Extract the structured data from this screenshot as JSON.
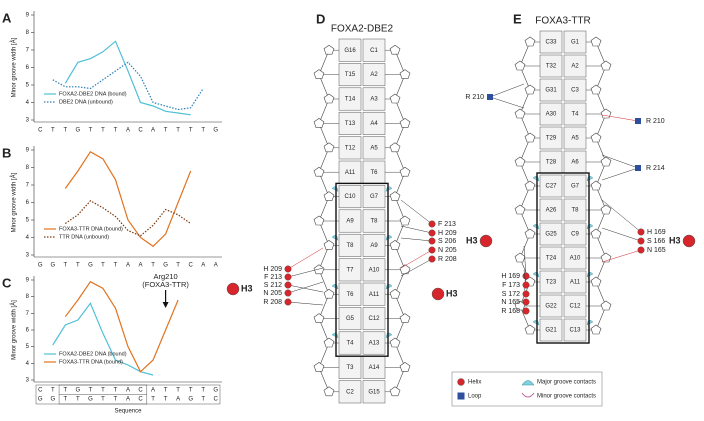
{
  "chart_data": [
    {
      "type": "line",
      "label": "A",
      "ylabel": "Minor groove width [Å]",
      "categories": [
        "C",
        "T",
        "T",
        "G",
        "T",
        "T",
        "T",
        "A",
        "C",
        "A",
        "T",
        "T",
        "T",
        "T",
        "G"
      ],
      "ylim": [
        3,
        9
      ],
      "yticks": [
        3,
        4,
        5,
        6,
        7,
        8,
        9
      ],
      "series": [
        {
          "name": "FOXA2-DBE2 DNA (bound)",
          "color": "#4fc0d6",
          "style": "solid",
          "values": [
            null,
            null,
            5.1,
            6.3,
            6.5,
            6.9,
            7.5,
            5.8,
            4.0,
            3.8,
            3.5,
            3.4,
            3.3,
            null,
            null
          ]
        },
        {
          "name": "DBE2 DNA (unbound)",
          "color": "#2b7fb8",
          "style": "dotted",
          "values": [
            null,
            5.3,
            4.9,
            4.9,
            4.8,
            5.3,
            5.8,
            6.3,
            5.5,
            4.0,
            3.8,
            3.6,
            3.7,
            4.8,
            null
          ]
        }
      ]
    },
    {
      "type": "line",
      "label": "B",
      "ylabel": "Minor groove width [Å]",
      "categories": [
        "G",
        "G",
        "T",
        "T",
        "G",
        "T",
        "T",
        "A",
        "A",
        "T",
        "G",
        "T",
        "C",
        "A",
        "A"
      ],
      "ylim": [
        3,
        9
      ],
      "yticks": [
        3,
        4,
        5,
        6,
        7,
        8,
        9
      ],
      "series": [
        {
          "name": "FOXA3-TTR DNA (bound)",
          "color": "#e2731f",
          "style": "solid",
          "values": [
            null,
            null,
            6.8,
            7.8,
            8.9,
            8.5,
            7.3,
            5.0,
            4.0,
            3.5,
            4.2,
            6.0,
            7.8,
            null,
            null
          ]
        },
        {
          "name": "TTR DNA (unbound)",
          "color": "#7a3a10",
          "style": "dotted",
          "values": [
            null,
            null,
            4.8,
            5.3,
            6.1,
            5.7,
            5.2,
            4.4,
            4.1,
            4.7,
            5.6,
            5.3,
            4.8,
            null,
            null
          ]
        }
      ]
    },
    {
      "type": "line",
      "label": "C",
      "ylabel": "Minor groove width [Å]",
      "xlabel": "Sequence",
      "annotation": [
        "Arg210",
        "(FOXA3-TTR)"
      ],
      "categories": [
        "C",
        "T",
        "T",
        "G",
        "T",
        "T",
        "T",
        "A",
        "C",
        "A",
        "T",
        "T",
        "T",
        "T",
        "G"
      ],
      "categories_2": [
        "G",
        "G",
        "T",
        "T",
        "G",
        "T",
        "T",
        "A",
        "C",
        "T",
        "T",
        "A",
        "G",
        "T",
        "C"
      ],
      "ylim": [
        3,
        9
      ],
      "yticks": [
        3,
        4,
        5,
        6,
        7,
        8,
        9
      ],
      "series": [
        {
          "name": "FOXA2-DBE2 DNA (bound)",
          "color": "#4fc0d6",
          "style": "solid",
          "values": [
            null,
            5.1,
            6.3,
            6.6,
            7.6,
            5.8,
            4.2,
            3.9,
            3.5,
            3.3,
            null,
            null,
            null,
            null,
            null
          ]
        },
        {
          "name": "FOXA3-TTR DNA (bound)",
          "color": "#e2731f",
          "style": "solid",
          "values": [
            null,
            null,
            6.8,
            7.8,
            8.9,
            8.5,
            7.3,
            5.0,
            3.5,
            4.2,
            6.0,
            7.8,
            null,
            null,
            null
          ]
        }
      ]
    }
  ],
  "panels": [
    {
      "label": "D",
      "title": "FOXA2-DBE2",
      "pairs": [
        [
          "G16",
          "C1"
        ],
        [
          "T15",
          "A2"
        ],
        [
          "T14",
          "A3"
        ],
        [
          "T13",
          "A4"
        ],
        [
          "T12",
          "A5"
        ],
        [
          "A11",
          "T6"
        ],
        [
          "C10",
          "G7"
        ],
        [
          "A9",
          "T8"
        ],
        [
          "T8",
          "A9"
        ],
        [
          "T7",
          "A10"
        ],
        [
          "T6",
          "A11"
        ],
        [
          "G5",
          "C12"
        ],
        [
          "T4",
          "A13"
        ],
        [
          "T3",
          "A14"
        ],
        [
          "C2",
          "G15"
        ]
      ],
      "left_contacts": [
        "H 209",
        "F 213",
        "S 212",
        "N 205",
        "R 208"
      ],
      "right_contacts": [
        "F 213",
        "H 209",
        "S 206",
        "N 205",
        "R 208"
      ]
    },
    {
      "label": "E",
      "title": "FOXA3-TTR",
      "pairs": [
        [
          "C33",
          "G1"
        ],
        [
          "T32",
          "A2"
        ],
        [
          "G31",
          "C3"
        ],
        [
          "A30",
          "T4"
        ],
        [
          "T29",
          "A5"
        ],
        [
          "T28",
          "A6"
        ],
        [
          "C27",
          "G7"
        ],
        [
          "A26",
          "T8"
        ],
        [
          "G25",
          "C9"
        ],
        [
          "T24",
          "A10"
        ],
        [
          "T23",
          "A11"
        ],
        [
          "G22",
          "C12"
        ],
        [
          "G21",
          "C13"
        ]
      ],
      "left_contacts": [
        "H 169",
        "F 173",
        "S 172",
        "N 165",
        "R 168"
      ],
      "right_contacts": [
        "H 169",
        "S 166",
        "N 165"
      ],
      "left_loop": [
        "R 210"
      ],
      "right_loop": [
        "R 210",
        "R 214"
      ]
    }
  ],
  "h3": [
    "H3",
    "H3",
    "H3",
    "H3"
  ],
  "legend": {
    "helix": "Helix",
    "loop": "Loop",
    "major": "Major groove contacts",
    "minor": "Minor groove contacts"
  }
}
